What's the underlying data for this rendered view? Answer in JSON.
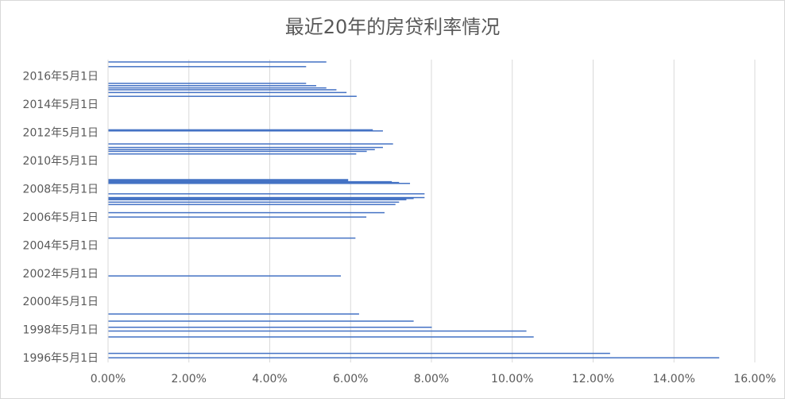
{
  "chart_data": {
    "type": "bar",
    "orientation": "horizontal",
    "title": "最近20年的房贷利率情况",
    "xlabel": "",
    "ylabel": "",
    "xlim": [
      0,
      0.16
    ],
    "x_ticks": [
      "0.00%",
      "2.00%",
      "4.00%",
      "6.00%",
      "8.00%",
      "10.00%",
      "12.00%",
      "14.00%",
      "16.00%"
    ],
    "y_ticks": [
      "1996年5月1日",
      "1998年5月1日",
      "2000年5月1日",
      "2002年5月1日",
      "2004年5月1日",
      "2006年5月1日",
      "2008年5月1日",
      "2010年5月1日",
      "2012年5月1日",
      "2014年5月1日",
      "2016年5月1日"
    ],
    "y_range": [
      "1996-01-01",
      "2017-07-01"
    ],
    "grid": true,
    "legend": "none",
    "bar_color": "#4472c4",
    "series": [
      {
        "dates": [
          "1996-05-01",
          "1996-08-23",
          "1997-10-23",
          "1998-03-25",
          "1998-07-01",
          "1998-12-07",
          "1999-06-10",
          "2002-02-21",
          "2004-10-29",
          "2006-04-28",
          "2006-08-19",
          "2007-03-18",
          "2007-05-19",
          "2007-07-21",
          "2007-08-22",
          "2007-09-15",
          "2007-12-21",
          "2008-09-16",
          "2008-10-09",
          "2008-10-30",
          "2008-11-27",
          "2008-12-23",
          "2010-10-20",
          "2010-12-26",
          "2011-02-09",
          "2011-04-06",
          "2011-07-07",
          "2012-06-08",
          "2012-07-06",
          "2014-11-22",
          "2015-03-01",
          "2015-05-11",
          "2015-06-28",
          "2015-08-26",
          "2015-10-24",
          "2016-12-31",
          "2017-05-01"
        ],
        "values": [
          0.1512,
          0.1242,
          0.1053,
          0.1035,
          0.0801,
          0.0756,
          0.0621,
          0.0576,
          0.0612,
          0.0639,
          0.0684,
          0.0711,
          0.072,
          0.0738,
          0.0756,
          0.0783,
          0.0783,
          0.0747,
          0.072,
          0.0702,
          0.0594,
          0.0594,
          0.0614,
          0.064,
          0.066,
          0.068,
          0.0705,
          0.068,
          0.0655,
          0.0615,
          0.059,
          0.0565,
          0.054,
          0.0515,
          0.049,
          0.049,
          0.054
        ]
      }
    ]
  }
}
